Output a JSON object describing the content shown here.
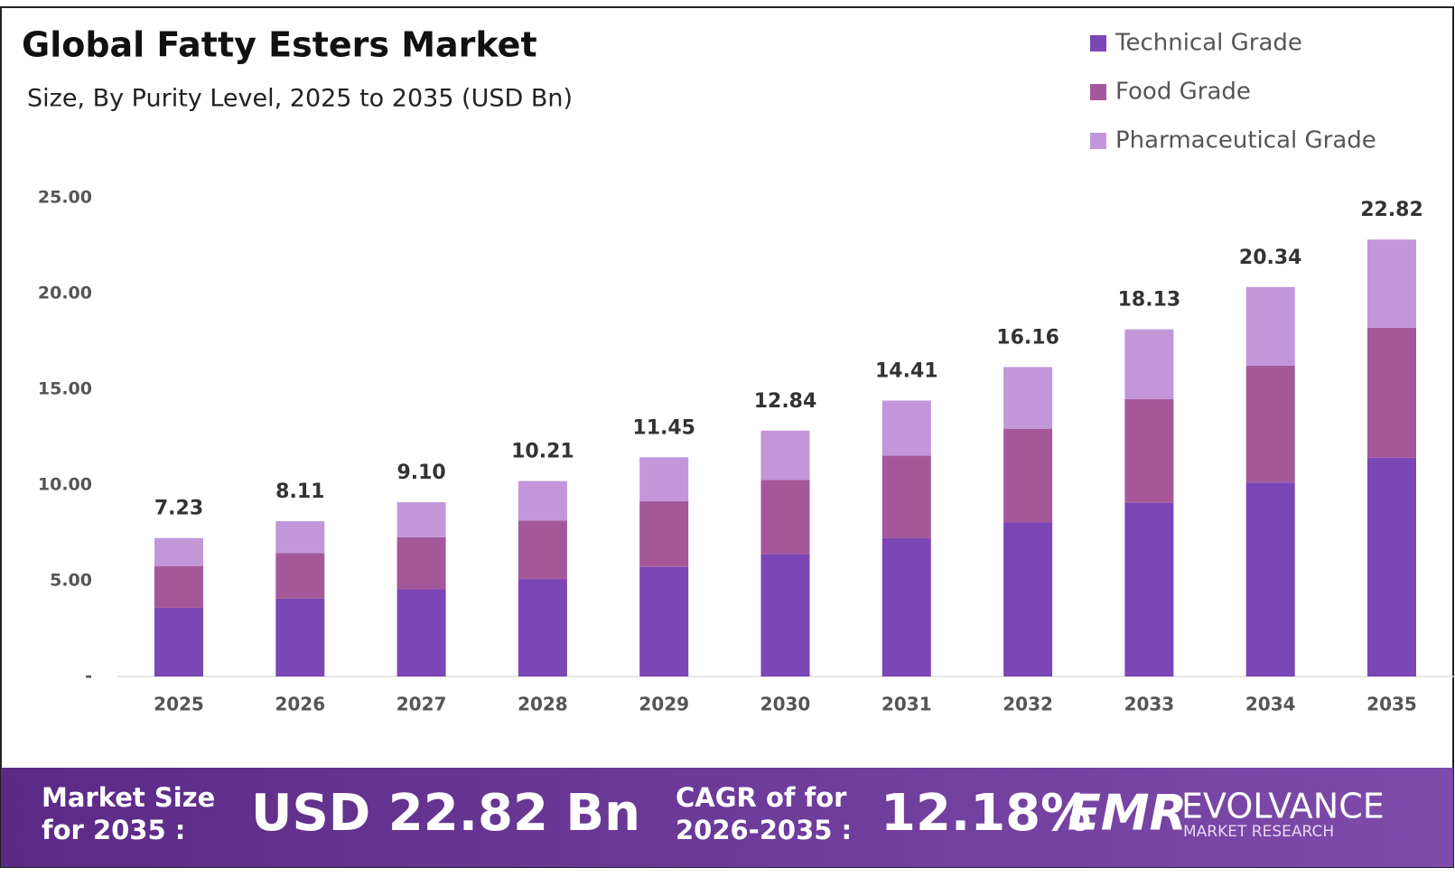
{
  "chart_data": {
    "type": "stacked_bar",
    "title": "Global Fatty Esters Market",
    "subtitle": "Size, By Purity Level, 2025 to 2035 (USD Bn)",
    "categories": [
      "2025",
      "2026",
      "2027",
      "2028",
      "2029",
      "2030",
      "2031",
      "2032",
      "2033",
      "2034",
      "2035"
    ],
    "series": [
      {
        "name": "Technical Grade",
        "color": "#7b46b6",
        "values": [
          3.59,
          4.07,
          4.55,
          5.09,
          5.72,
          6.4,
          7.22,
          8.04,
          9.06,
          10.13,
          11.43
        ]
      },
      {
        "name": "Food Grade",
        "color": "#a4589a",
        "values": [
          2.18,
          2.37,
          2.72,
          3.05,
          3.44,
          3.87,
          4.31,
          4.9,
          5.43,
          6.1,
          6.79
        ]
      },
      {
        "name": "Pharmaceutical Grade",
        "color": "#c396da",
        "values": [
          1.46,
          1.67,
          1.83,
          2.07,
          2.29,
          2.57,
          2.88,
          3.22,
          3.64,
          4.11,
          4.6
        ]
      }
    ],
    "totals": {
      "values": [
        7.23,
        8.11,
        9.1,
        10.21,
        11.45,
        12.84,
        14.41,
        16.16,
        18.13,
        20.34,
        22.82
      ],
      "value_labels": [
        "7.23",
        "8.11",
        "9.10",
        "10.21",
        "11.45",
        "12.84",
        "14.41",
        "16.16",
        "18.13",
        "20.34",
        "22.82"
      ]
    },
    "ylim": [
      0,
      25
    ],
    "yticks": [
      {
        "value": 0,
        "label": "-"
      },
      {
        "value": 5,
        "label": "5.00"
      },
      {
        "value": 10,
        "label": "10.00"
      },
      {
        "value": 15,
        "label": "15.00"
      },
      {
        "value": 20,
        "label": "20.00"
      },
      {
        "value": 25,
        "label": "25.00"
      }
    ],
    "legend": "top-right"
  },
  "footer": {
    "market_size_label": [
      "Market Size",
      "for 2035 :"
    ],
    "market_size_value": "USD 22.82 Bn",
    "cagr_label": [
      "CAGR of for",
      "2026-2035 :"
    ],
    "cagr_value": "12.18%",
    "brand": {
      "logo": "EMR",
      "name": "EVOLVANCE",
      "tagline": "MARKET RESEARCH"
    }
  }
}
